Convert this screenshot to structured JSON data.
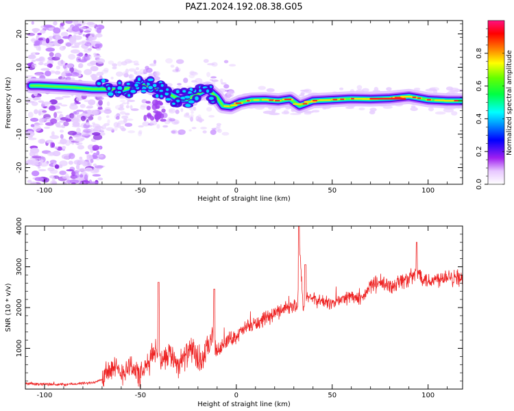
{
  "title": "PAZ1.2024.192.08.38.G05",
  "chart_data": [
    {
      "type": "heatmap",
      "xlabel": "Height of straight line (km)",
      "ylabel": "Frequency (Hz)",
      "xlim": [
        -110,
        118
      ],
      "ylim": [
        -25,
        24
      ],
      "xticks": [
        -100,
        -50,
        0,
        50,
        100
      ],
      "yticks": [
        -20,
        -10,
        0,
        10,
        20
      ],
      "ridge": [
        {
          "x": -107,
          "y": 4.5
        },
        {
          "x": -103,
          "y": 4.5
        },
        {
          "x": -85,
          "y": 4.0
        },
        {
          "x": -75,
          "y": 3.5
        },
        {
          "x": -68,
          "y": 3.5
        },
        {
          "x": -60,
          "y": 3.2
        },
        {
          "x": -55,
          "y": 4.0
        },
        {
          "x": -50,
          "y": 4.8
        },
        {
          "x": -45,
          "y": 4.2
        },
        {
          "x": -40,
          "y": 3.0
        },
        {
          "x": -35,
          "y": 2.0
        },
        {
          "x": -30,
          "y": 0.5
        },
        {
          "x": -25,
          "y": 0.5
        },
        {
          "x": -20,
          "y": 2.0
        },
        {
          "x": -15,
          "y": 3.5
        },
        {
          "x": -10,
          "y": 1.0
        },
        {
          "x": -7,
          "y": -1.5
        },
        {
          "x": -3,
          "y": -1.8
        },
        {
          "x": 2,
          "y": -0.5
        },
        {
          "x": 8,
          "y": 0.2
        },
        {
          "x": 15,
          "y": 0.3
        },
        {
          "x": 22,
          "y": 0.0
        },
        {
          "x": 28,
          "y": 0.5
        },
        {
          "x": 33,
          "y": -1.5
        },
        {
          "x": 40,
          "y": 0.0
        },
        {
          "x": 50,
          "y": 0.3
        },
        {
          "x": 60,
          "y": 0.6
        },
        {
          "x": 70,
          "y": 0.5
        },
        {
          "x": 80,
          "y": 0.7
        },
        {
          "x": 90,
          "y": 1.3
        },
        {
          "x": 100,
          "y": 0.3
        },
        {
          "x": 110,
          "y": 0.0
        },
        {
          "x": 118,
          "y": 0.0
        }
      ],
      "colorbar": {
        "label": "Normalized spectral amplitude",
        "range": [
          0,
          1
        ],
        "ticks": [
          0.0,
          0.2,
          0.4,
          0.6,
          0.8
        ],
        "tick_labels": [
          "0.0",
          "0.2",
          "0.4",
          "0.6",
          "0.8"
        ],
        "colormap": "gist_ncar_r",
        "colors": [
          "#ffffff",
          "#9b30ff",
          "#0000ff",
          "#00ffff",
          "#00ff00",
          "#ffff00",
          "#ff6600",
          "#ff0000",
          "#ff1493"
        ]
      }
    },
    {
      "type": "line",
      "xlabel": "Height of straight line (km)",
      "ylabel": "SNR (10 * v/v)",
      "xlim": [
        -110,
        118
      ],
      "ylim": [
        0,
        4000
      ],
      "xticks": [
        -100,
        -50,
        0,
        50,
        100
      ],
      "yticks": [
        1000,
        2000,
        3000,
        4000
      ],
      "color": "#ee2222",
      "series": [
        {
          "x": [
            -110,
            -100,
            -90,
            -80,
            -75,
            -70,
            -68,
            -65,
            -60,
            -55,
            -50,
            -45,
            -42,
            -40,
            -35,
            -30,
            -25,
            -22,
            -20,
            -15,
            -12,
            -10,
            -5,
            0,
            5,
            10,
            15,
            20,
            25,
            30,
            32,
            33,
            35,
            37,
            40,
            45,
            50,
            55,
            60,
            65,
            70,
            75,
            80,
            85,
            90,
            95,
            100,
            105,
            110,
            115,
            118
          ],
          "y": [
            130,
            120,
            110,
            140,
            150,
            250,
            450,
            500,
            400,
            600,
            300,
            700,
            1000,
            700,
            900,
            600,
            900,
            1000,
            500,
            1000,
            1300,
            900,
            1200,
            1300,
            1500,
            1600,
            1700,
            1850,
            2000,
            2050,
            2000,
            3500,
            1900,
            2300,
            2200,
            2150,
            2100,
            2200,
            2300,
            2150,
            2550,
            2600,
            2500,
            2650,
            2700,
            2850,
            2650,
            2700,
            2800,
            2750,
            2700
          ]
        }
      ]
    }
  ]
}
